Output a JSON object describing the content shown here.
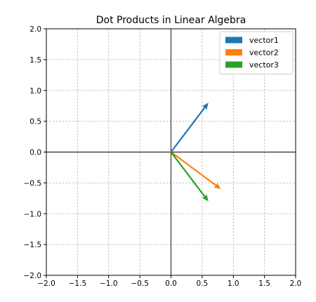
{
  "chart_data": {
    "type": "quiver",
    "title": "Dot Products in Linear Algebra",
    "xlabel": "",
    "ylabel": "",
    "xlim": [
      -2.0,
      2.0
    ],
    "ylim": [
      -2.0,
      2.0
    ],
    "x_ticks": [
      "-2.0",
      "-1.5",
      "-1.0",
      "-0.5",
      "0.0",
      "0.5",
      "1.0",
      "1.5",
      "2.0"
    ],
    "y_ticks": [
      "2.0",
      "1.5",
      "1.0",
      "0.5",
      "0.0",
      "-0.5",
      "-1.0",
      "-1.5",
      "-2.0"
    ],
    "grid": true,
    "legend_position": "top-right",
    "series": [
      {
        "name": "vector1",
        "color": "#1f77b4",
        "start": [
          0,
          0
        ],
        "end": [
          0.6,
          0.8
        ]
      },
      {
        "name": "vector2",
        "color": "#ff7f0e",
        "start": [
          0,
          0
        ],
        "end": [
          0.8,
          -0.6
        ]
      },
      {
        "name": "vector3",
        "color": "#2ca02c",
        "start": [
          0,
          0
        ],
        "end": [
          0.6,
          -0.8
        ]
      }
    ]
  }
}
